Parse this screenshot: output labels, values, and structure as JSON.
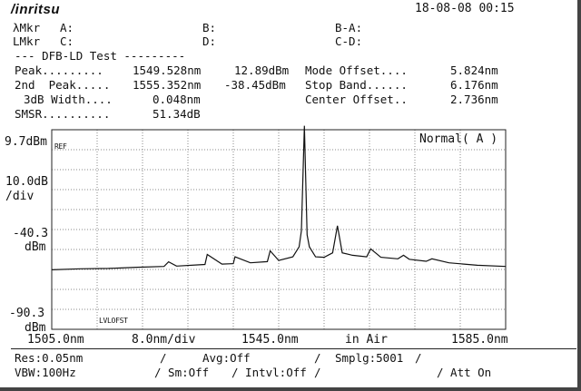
{
  "header": {
    "brand": "/inritsu",
    "datetime": "18-08-08 00:15"
  },
  "markers": {
    "lambda_mkr": "λMkr",
    "a": "A:",
    "b": "B:",
    "ba": "B-A:",
    "level_mkr": "LMkr",
    "c": "C:",
    "d": "D:",
    "cd": "C-D:"
  },
  "test_title": "--- DFB-LD Test ---------",
  "results": {
    "peak_label": "Peak.........",
    "peak_wl": "1549.528nm",
    "peak_lvl": "12.89dBm",
    "peak2_label": "2nd  Peak.....",
    "peak2_wl": "1555.352nm",
    "peak2_lvl": "-38.45dBm",
    "width_label": "3dB Width....",
    "width_val": "0.048nm",
    "smsr_label": "SMSR..........",
    "smsr_val": "51.34dB",
    "mode_offset_label": "Mode Offset....",
    "mode_offset_val": "5.824nm",
    "stop_band_label": "Stop Band......",
    "stop_band_val": "6.176nm",
    "center_offset_label": "Center Offset..",
    "center_offset_val": "2.736nm"
  },
  "axis": {
    "ref_level": "9.7dBm",
    "ref_tag": "REF",
    "scale_val": "10.0dB",
    "scale_unit": "/div",
    "mid_val": "-40.3",
    "mid_unit": "dBm",
    "bot_val": "-90.3",
    "bot_unit": "dBm",
    "lvl_tag": "LVLOFST",
    "x_start": "1505.0nm",
    "x_div": "8.0nm/div",
    "x_center": "1545.0nm",
    "x_medium": "in Air",
    "x_stop": "1585.0nm",
    "mode": "Normal( A )"
  },
  "status": {
    "res": "Res:0.05nm",
    "slash1": "/",
    "avg": "Avg:Off",
    "slash2": "/",
    "smplg": "Smplg:5001",
    "slash3": "/",
    "vbw": "VBW:100Hz",
    "sm": "/ Sm:Off",
    "intvl": "/ Intvl:Off",
    "slash4": "/",
    "att": "/ Att On"
  },
  "chart_data": {
    "type": "line",
    "title": "",
    "xlabel": "",
    "ylabel": "",
    "xlim": [
      1505.0,
      1585.0
    ],
    "ylim": [
      -90.3,
      9.7
    ],
    "x_unit": "nm",
    "y_unit": "dBm",
    "grid": true,
    "series": [
      {
        "name": "",
        "x": [
          1505.0,
          1510.0,
          1515.0,
          1520.0,
          1524.8,
          1525.6,
          1527.0,
          1532.0,
          1532.4,
          1535.0,
          1537.0,
          1537.3,
          1540.0,
          1543.0,
          1543.5,
          1545.0,
          1547.5,
          1548.6,
          1549.0,
          1549.528,
          1550.0,
          1550.4,
          1551.5,
          1553.0,
          1554.5,
          1555.352,
          1556.2,
          1558.0,
          1560.5,
          1561.2,
          1563.0,
          1566.0,
          1567.0,
          1568.0,
          1571.0,
          1572.0,
          1575.0,
          1580.0,
          1585.0
        ],
        "y": [
          -60.5,
          -60.0,
          -59.8,
          -59.2,
          -58.8,
          -56.5,
          -58.6,
          -57.8,
          -52.8,
          -57.6,
          -57.4,
          -54.0,
          -57.0,
          -56.4,
          -51.0,
          -55.8,
          -54.0,
          -49.0,
          -41.0,
          12.89,
          -43.0,
          -49.0,
          -54.0,
          -54.2,
          -52.0,
          -38.45,
          -52.0,
          -53.2,
          -54.0,
          -50.0,
          -54.2,
          -55.0,
          -53.2,
          -55.2,
          -56.2,
          -55.0,
          -57.0,
          -58.2,
          -58.8
        ]
      }
    ]
  }
}
